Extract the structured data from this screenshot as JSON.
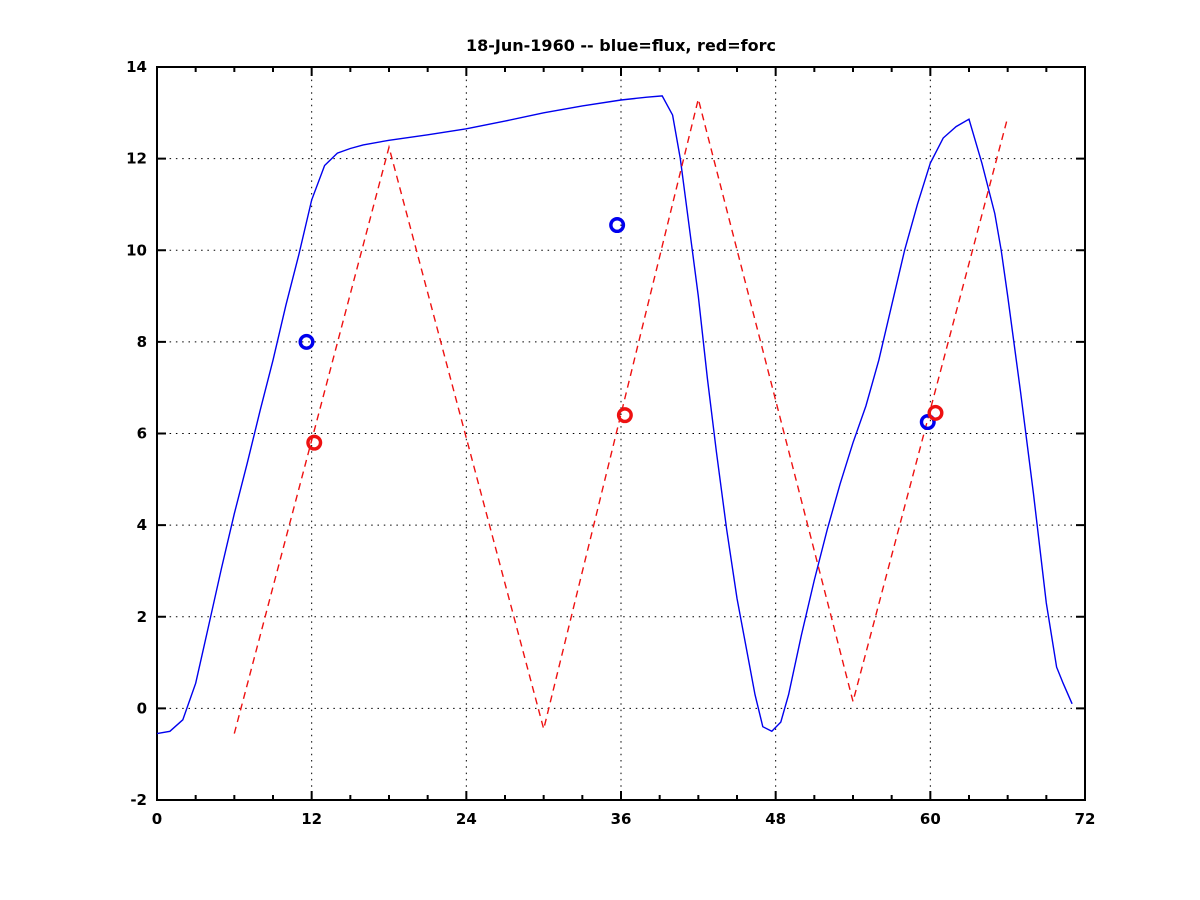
{
  "figure": {
    "title": "18-Jun-1960 -- blue=flux, red=forc",
    "background": "#ffffff"
  },
  "chart_data": {
    "type": "line",
    "title": "18-Jun-1960 -- blue=flux, red=forc",
    "xlabel": "",
    "ylabel": "",
    "xlim": [
      0,
      72
    ],
    "ylim": [
      -2,
      14
    ],
    "x_tick_labels": [
      0,
      12,
      24,
      36,
      48,
      60,
      72
    ],
    "x_minor_tick_step": 3,
    "y_tick_labels": [
      -2,
      0,
      2,
      4,
      6,
      8,
      10,
      12,
      14
    ],
    "grid": {
      "style": "dotted",
      "color": "#000000",
      "x_lines": [
        12,
        24,
        36,
        48,
        60
      ],
      "y_lines": [
        0,
        2,
        4,
        6,
        8,
        10,
        12
      ]
    },
    "legend_position": "encoded-in-title",
    "series": [
      {
        "name": "flux",
        "color": "#0000ee",
        "line_style": "solid",
        "points": [
          [
            0,
            -0.55
          ],
          [
            1,
            -0.5
          ],
          [
            2,
            -0.25
          ],
          [
            3,
            0.55
          ],
          [
            4,
            1.8
          ],
          [
            5,
            3.05
          ],
          [
            6,
            4.25
          ],
          [
            7,
            5.35
          ],
          [
            8,
            6.5
          ],
          [
            9,
            7.6
          ],
          [
            10,
            8.8
          ],
          [
            11,
            9.9
          ],
          [
            12,
            11.1
          ],
          [
            13,
            11.85
          ],
          [
            14,
            12.12
          ],
          [
            15,
            12.22
          ],
          [
            16,
            12.3
          ],
          [
            18,
            12.4
          ],
          [
            21,
            12.52
          ],
          [
            24,
            12.65
          ],
          [
            27,
            12.82
          ],
          [
            30,
            13.0
          ],
          [
            33,
            13.15
          ],
          [
            36,
            13.28
          ],
          [
            38,
            13.34
          ],
          [
            39.2,
            13.37
          ],
          [
            40,
            12.95
          ],
          [
            40.6,
            12.0
          ],
          [
            41.3,
            10.5
          ],
          [
            42,
            9.0
          ],
          [
            42.7,
            7.2
          ],
          [
            43.4,
            5.6
          ],
          [
            44.2,
            3.9
          ],
          [
            45,
            2.4
          ],
          [
            45.8,
            1.2
          ],
          [
            46.4,
            0.3
          ],
          [
            47,
            -0.4
          ],
          [
            47.7,
            -0.5
          ],
          [
            48.4,
            -0.3
          ],
          [
            49,
            0.3
          ],
          [
            50,
            1.6
          ],
          [
            51,
            2.8
          ],
          [
            52,
            3.9
          ],
          [
            53,
            4.9
          ],
          [
            54,
            5.8
          ],
          [
            55,
            6.6
          ],
          [
            56,
            7.6
          ],
          [
            57,
            8.8
          ],
          [
            58,
            10.0
          ],
          [
            59,
            11.0
          ],
          [
            60,
            11.9
          ],
          [
            61,
            12.45
          ],
          [
            62,
            12.7
          ],
          [
            63,
            12.86
          ],
          [
            64,
            11.9
          ],
          [
            65,
            10.8
          ],
          [
            65.5,
            10.0
          ],
          [
            66,
            9.0
          ],
          [
            67,
            6.9
          ],
          [
            68,
            4.7
          ],
          [
            69,
            2.3
          ],
          [
            69.8,
            0.9
          ],
          [
            70.3,
            0.55
          ],
          [
            71,
            0.1
          ]
        ]
      },
      {
        "name": "forc",
        "color": "#ee1111",
        "line_style": "dashed",
        "points": [
          [
            6,
            -0.55
          ],
          [
            18,
            12.25
          ],
          [
            30,
            -0.45
          ],
          [
            42,
            13.3
          ],
          [
            54,
            0.15
          ],
          [
            66,
            12.9
          ]
        ]
      }
    ],
    "markers": [
      {
        "series": "flux",
        "shape": "circle",
        "color": "#0000ee",
        "points": [
          [
            11.6,
            8.0
          ],
          [
            35.7,
            10.55
          ],
          [
            59.8,
            6.25
          ]
        ]
      },
      {
        "series": "forc",
        "shape": "circle",
        "color": "#ee1111",
        "points": [
          [
            12.2,
            5.8
          ],
          [
            36.3,
            6.4
          ],
          [
            60.4,
            6.45
          ]
        ]
      }
    ]
  },
  "axis": {
    "frame_color": "#000000"
  }
}
